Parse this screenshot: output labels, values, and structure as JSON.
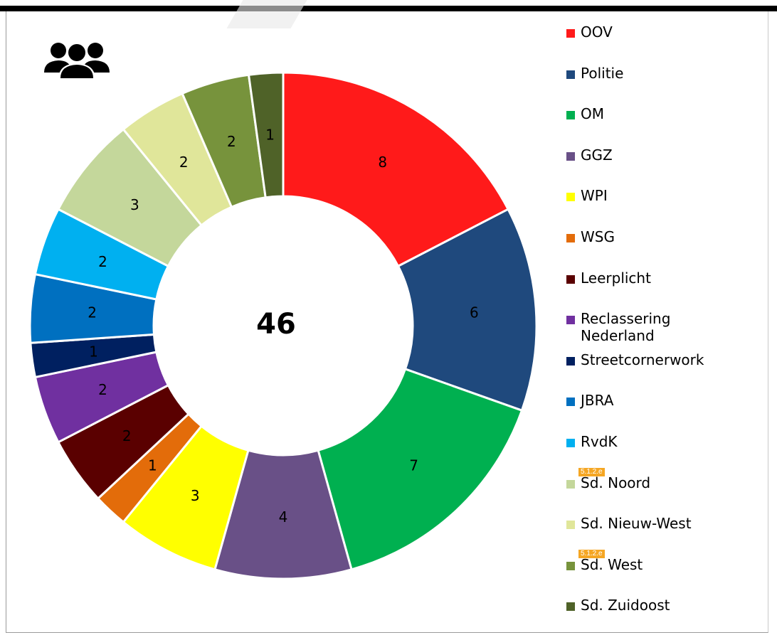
{
  "center_label": "46",
  "icons": {
    "group": "people-group-icon"
  },
  "chart_data": {
    "type": "pie",
    "donut": true,
    "center_label": "46",
    "categories": [
      "OOV",
      "Politie",
      "OM",
      "GGZ",
      "WPI",
      "WSG",
      "Leerplicht",
      "Reclassering Nederland",
      "Streetcornerwork",
      "JBRA",
      "RvdK",
      "Sd. Noord",
      "Sd. Nieuw-West",
      "Sd. West",
      "Sd. Zuidoost"
    ],
    "values": [
      8,
      6,
      7,
      4,
      3,
      1,
      2,
      2,
      1,
      2,
      2,
      3,
      2,
      2,
      1
    ],
    "colors": [
      "#ff1a1a",
      "#1f497d",
      "#00b050",
      "#695087",
      "#ffff00",
      "#e36c0a",
      "#5a0000",
      "#7030a0",
      "#002060",
      "#0070c0",
      "#00b0f0",
      "#c4d79b",
      "#e0e69a",
      "#77933c",
      "#4f6228"
    ],
    "legend_position": "right"
  },
  "legend": [
    {
      "label": "OOV",
      "color": "#ff1a1a"
    },
    {
      "label": "Politie",
      "color": "#1f497d"
    },
    {
      "label": "OM",
      "color": "#00b050"
    },
    {
      "label": "GGZ",
      "color": "#695087"
    },
    {
      "label": "WPI",
      "color": "#ffff00"
    },
    {
      "label": "WSG",
      "color": "#e36c0a"
    },
    {
      "label": "Leerplicht",
      "color": "#5a0000"
    },
    {
      "label": "Reclassering\nNederland",
      "color": "#7030a0"
    },
    {
      "label": "Streetcornerwork",
      "color": "#002060"
    },
    {
      "label": "JBRA",
      "color": "#0070c0"
    },
    {
      "label": "RvdK",
      "color": "#00b0f0"
    },
    {
      "label": "Sd. Noord",
      "color": "#c4d79b",
      "tag": "5.1.2.e"
    },
    {
      "label": "Sd. Nieuw-West",
      "color": "#e0e69a"
    },
    {
      "label": "Sd. West",
      "color": "#77933c",
      "tag": "5.1.2.e"
    },
    {
      "label": "Sd. Zuidoost",
      "color": "#4f6228"
    }
  ]
}
